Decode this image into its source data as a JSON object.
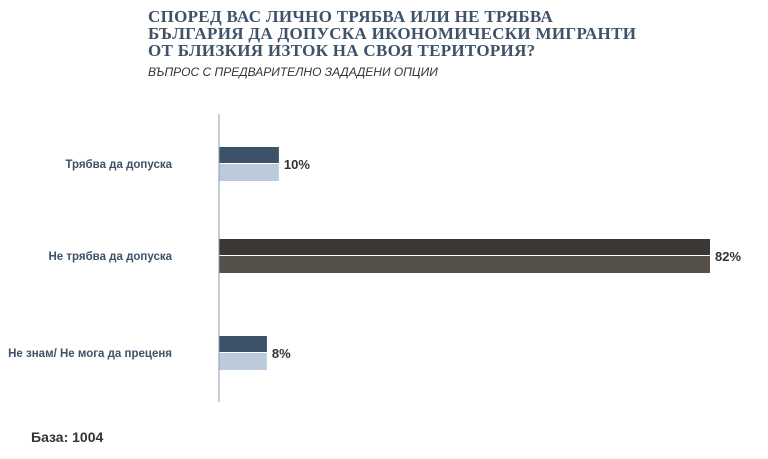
{
  "header": {
    "title_lines": [
      "СПОРЕД ВАС ЛИЧНО ТРЯБВА ИЛИ НЕ ТРЯБВА",
      "БЪЛГАРИЯ ДА ДОПУСКА ИКОНОМИЧЕСКИ МИГРАНТИ",
      "ОТ БЛИЗКИЯ ИЗТОК НА СВОЯ ТЕРИТОРИЯ?"
    ],
    "subtitle": "ВЪПРОС С ПРЕДВАРИТЕЛНО ЗАДАДЕНИ ОПЦИИ"
  },
  "footer": {
    "base_label": "База: 1004"
  },
  "chart_data": {
    "type": "bar",
    "orientation": "horizontal",
    "categories": [
      "Трябва да допуска",
      "Не трябва да допуска",
      "Не знам/ Не мога да преценя"
    ],
    "values": [
      10,
      82,
      8
    ],
    "value_labels": [
      "10%",
      "82%",
      "8%"
    ],
    "unit": "%",
    "xlim": [
      0,
      82
    ],
    "grid": false,
    "legend": "none",
    "colors": {
      "bar_top": [
        "#3d5168",
        "#3a3735",
        "#3d5168"
      ],
      "bar_bottom": [
        "#bccbdc",
        "#555049",
        "#bccbdc"
      ],
      "axis": "#8a9bb0",
      "category_text": "#3e5268",
      "value_text": "#333333"
    }
  }
}
